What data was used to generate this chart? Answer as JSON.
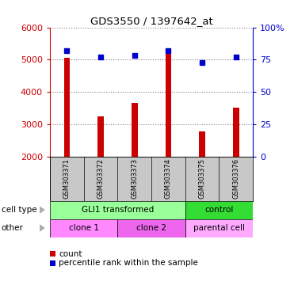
{
  "title": "GDS3550 / 1397642_at",
  "samples": [
    "GSM303371",
    "GSM303372",
    "GSM303373",
    "GSM303374",
    "GSM303375",
    "GSM303376"
  ],
  "counts": [
    5060,
    3230,
    3660,
    5250,
    2780,
    3500
  ],
  "percentiles": [
    82,
    77,
    78,
    82,
    73,
    77
  ],
  "ylim_left": [
    2000,
    6000
  ],
  "ylim_right": [
    0,
    100
  ],
  "yticks_left": [
    2000,
    3000,
    4000,
    5000,
    6000
  ],
  "yticks_right": [
    0,
    25,
    50,
    75,
    100
  ],
  "bar_color": "#cc0000",
  "dot_color": "#0000cc",
  "bg_sample_row": "#c8c8c8",
  "cell_type_groups": [
    {
      "label": "GLI1 transformed",
      "start": 0,
      "end": 4,
      "color": "#99ff99"
    },
    {
      "label": "control",
      "start": 4,
      "end": 6,
      "color": "#33dd33"
    }
  ],
  "other_groups": [
    {
      "label": "clone 1",
      "start": 0,
      "end": 2,
      "color": "#ff88ff"
    },
    {
      "label": "clone 2",
      "start": 2,
      "end": 4,
      "color": "#ee66ee"
    },
    {
      "label": "parental cell",
      "start": 4,
      "end": 6,
      "color": "#ffaaff"
    }
  ],
  "legend_count_label": "count",
  "legend_percentile_label": "percentile rank within the sample",
  "left_axis_color": "#cc0000",
  "right_axis_color": "#0000cc",
  "row_label_cell_type": "cell type",
  "row_label_other": "other"
}
